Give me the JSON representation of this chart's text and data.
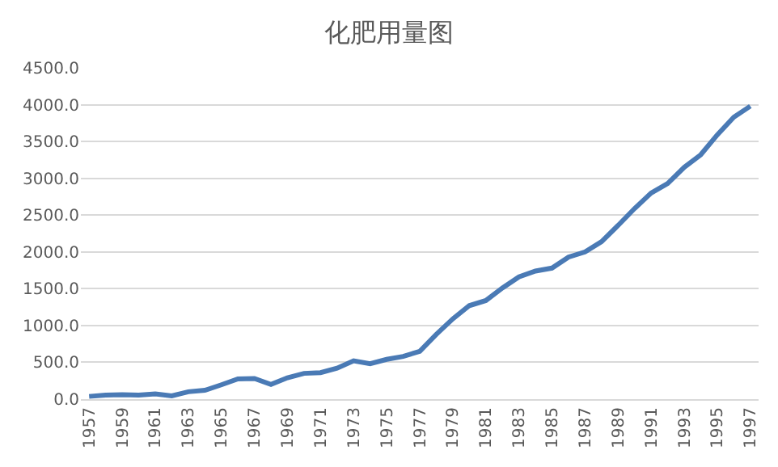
{
  "chart_data": {
    "type": "line",
    "title": "化肥用量图",
    "x": [
      1957,
      1958,
      1959,
      1960,
      1961,
      1962,
      1963,
      1964,
      1965,
      1966,
      1967,
      1968,
      1969,
      1970,
      1971,
      1972,
      1973,
      1974,
      1975,
      1976,
      1977,
      1978,
      1979,
      1980,
      1981,
      1982,
      1983,
      1984,
      1985,
      1986,
      1987,
      1988,
      1989,
      1990,
      1991,
      1992,
      1993,
      1994,
      1995,
      1996,
      1997
    ],
    "series": [
      {
        "color": "#4a7ab5",
        "values": [
          37,
          55,
          60,
          55,
          70,
          45,
          100,
          120,
          195,
          275,
          280,
          200,
          290,
          350,
          360,
          420,
          520,
          480,
          540,
          580,
          650,
          880,
          1090,
          1270,
          1340,
          1510,
          1660,
          1740,
          1780,
          1930,
          2000,
          2140,
          2360,
          2590,
          2800,
          2930,
          3150,
          3320,
          3590,
          3830,
          3980
        ]
      }
    ],
    "xlim": [
      1956.5,
      1997.5
    ],
    "xticks": [
      1957,
      1959,
      1961,
      1963,
      1965,
      1967,
      1969,
      1971,
      1973,
      1975,
      1977,
      1979,
      1981,
      1983,
      1985,
      1987,
      1989,
      1991,
      1993,
      1995,
      1997
    ],
    "ylim": [
      0,
      4500
    ],
    "yticks": [
      {
        "value": 0,
        "label": "0.0"
      },
      {
        "value": 500,
        "label": "500.0"
      },
      {
        "value": 1000,
        "label": "1000.0"
      },
      {
        "value": 1500,
        "label": "1500.0"
      },
      {
        "value": 2000,
        "label": "2000.0"
      },
      {
        "value": 2500,
        "label": "2500.0"
      },
      {
        "value": 3000,
        "label": "3000.0"
      },
      {
        "value": 3500,
        "label": "3500.0"
      },
      {
        "value": 4000,
        "label": "4000.0"
      },
      {
        "value": 4500,
        "label": "4500.0"
      }
    ],
    "grid": "y",
    "legend": false,
    "marker": "none",
    "line_style": "solid"
  }
}
